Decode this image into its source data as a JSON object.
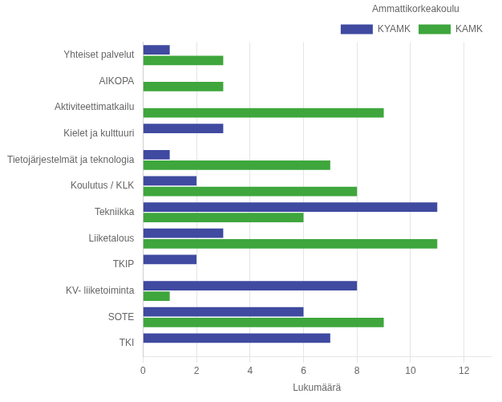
{
  "chart_data": {
    "type": "bar",
    "orientation": "horizontal",
    "title": "Ammattikorkeakoulu",
    "xlabel": "Lukumäärä",
    "categories": [
      "TKI",
      "SOTE",
      "KV- liiketoiminta",
      "TKIP",
      "Liiketalous",
      "Tekniikka",
      "Koulutus / KLK",
      "Tietojärjestelmät ja teknologia",
      "Kielet ja kulttuuri",
      "Aktiviteettimatkailu",
      "AIKOPA",
      "Yhteiset palvelut"
    ],
    "series": [
      {
        "name": "KYAMK",
        "color": "#3F4AA0",
        "values": [
          7,
          6,
          8,
          2,
          3,
          11,
          2,
          1,
          3,
          0,
          0,
          1
        ]
      },
      {
        "name": "KAMK",
        "color": "#3EA63C",
        "values": [
          0,
          9,
          1,
          0,
          11,
          6,
          8,
          7,
          0,
          9,
          3,
          3
        ]
      }
    ],
    "xlim": [
      0,
      13
    ],
    "xticks": [
      0,
      2,
      4,
      6,
      8,
      10,
      12
    ],
    "grid": true,
    "legend": "upper right"
  }
}
